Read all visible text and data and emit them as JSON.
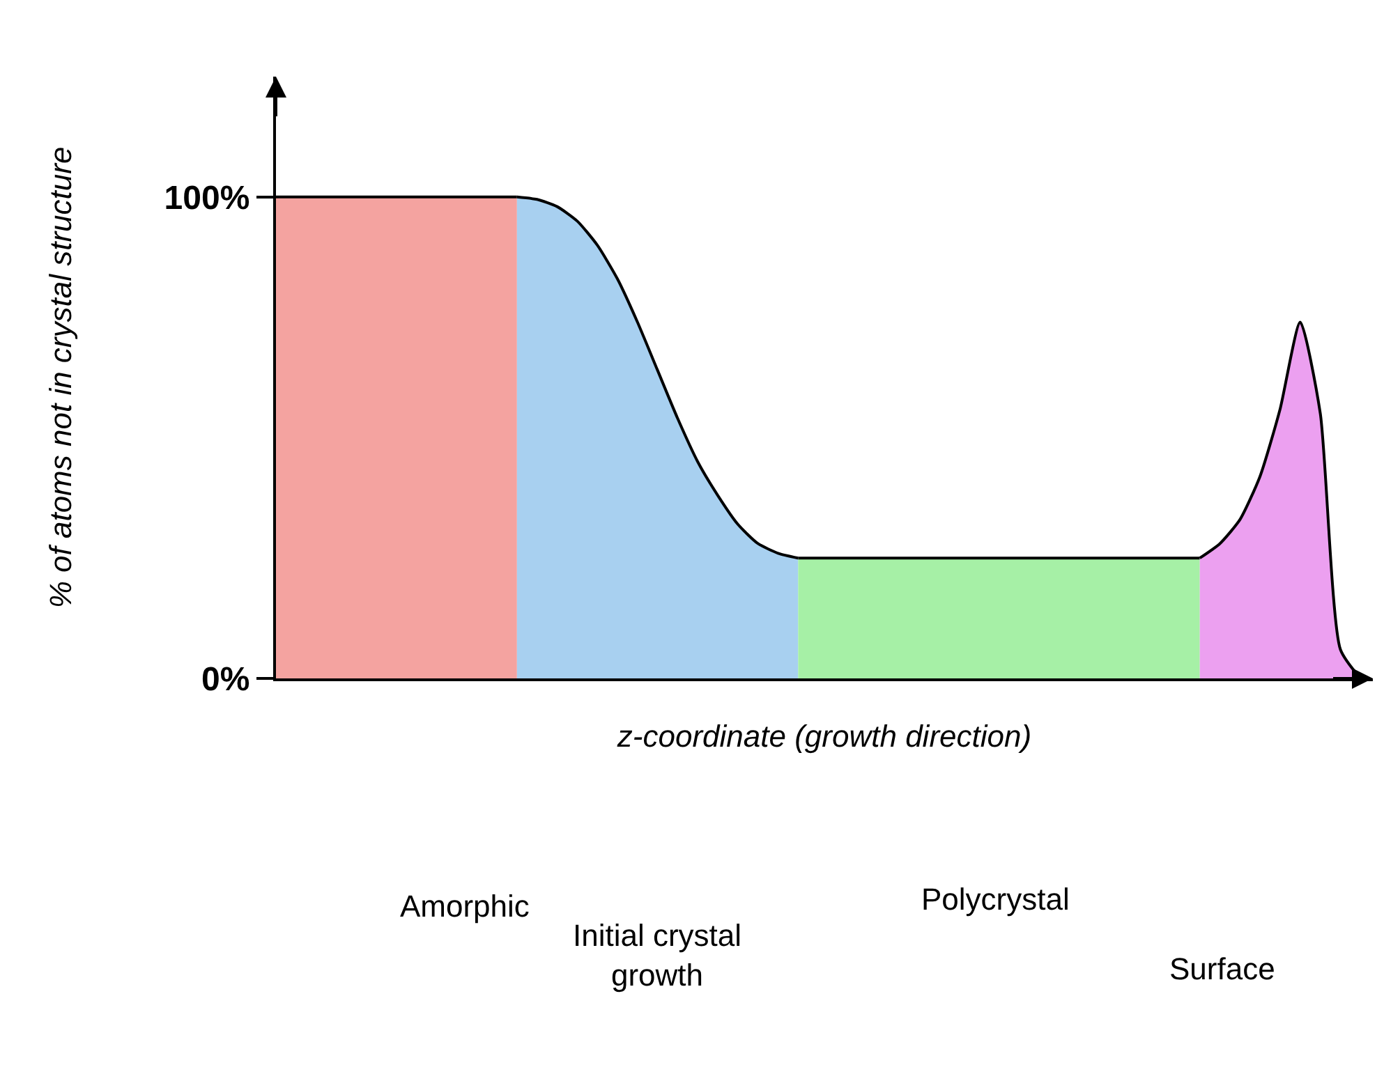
{
  "chart_data": {
    "type": "area",
    "relative": false,
    "xlabel": "z-coordinate (growth direction)",
    "ylabel": "% of atoms not in crystal structure",
    "categories": [
      null,
      null,
      null,
      null,
      null,
      null,
      null,
      null,
      null,
      null,
      null,
      null,
      null,
      null,
      null,
      null,
      null,
      null,
      null,
      null,
      null,
      null,
      null,
      null,
      null,
      null,
      null,
      null,
      null,
      null,
      null,
      null,
      null,
      null,
      null,
      null,
      null,
      null,
      null,
      null,
      null,
      null,
      null,
      null,
      null,
      null,
      null,
      null,
      null,
      null,
      null,
      null,
      null,
      null,
      null
    ],
    "ylim": [
      0,
      125
    ],
    "yticks": [
      {
        "value": 0,
        "label": "0%"
      },
      {
        "value": 100,
        "label": "100%"
      }
    ],
    "series": [
      {
        "color": "#f4a3a0",
        "values": [
          100,
          100,
          100,
          100,
          100,
          100,
          100,
          100,
          100,
          100,
          100,
          100,
          100,
          null,
          null,
          null,
          null,
          null,
          null,
          null,
          null,
          null,
          null,
          null,
          null,
          null,
          null,
          null,
          null,
          null,
          null,
          null,
          null,
          null,
          null,
          null,
          null,
          null,
          null,
          null,
          null,
          null,
          null,
          null,
          null,
          null,
          null,
          null,
          null,
          null,
          null,
          null,
          null,
          null,
          null
        ]
      },
      {
        "color": "#a8d0f0",
        "values": [
          null,
          null,
          null,
          null,
          null,
          null,
          null,
          null,
          null,
          null,
          null,
          null,
          100,
          99.5,
          98,
          95,
          90,
          83,
          74,
          64,
          54,
          45,
          38,
          32,
          28,
          26,
          25,
          null,
          null,
          null,
          null,
          null,
          null,
          null,
          null,
          null,
          null,
          null,
          null,
          null,
          null,
          null,
          null,
          null,
          null,
          null,
          null,
          null,
          null,
          null,
          null,
          null,
          null,
          null,
          null
        ]
      },
      {
        "color": "#a6f0a6",
        "values": [
          null,
          null,
          null,
          null,
          null,
          null,
          null,
          null,
          null,
          null,
          null,
          null,
          null,
          null,
          null,
          null,
          null,
          null,
          null,
          null,
          null,
          null,
          null,
          null,
          null,
          null,
          25,
          25,
          25,
          25,
          25,
          25,
          25,
          25,
          25,
          25,
          25,
          25,
          25,
          25,
          25,
          25,
          25,
          25,
          25,
          25,
          25,
          null,
          null,
          null,
          null,
          null,
          null,
          null,
          null
        ]
      },
      {
        "color": "#eca0f0",
        "values": [
          null,
          null,
          null,
          null,
          null,
          null,
          null,
          null,
          null,
          null,
          null,
          null,
          null,
          null,
          null,
          null,
          null,
          null,
          null,
          null,
          null,
          null,
          null,
          null,
          null,
          null,
          null,
          null,
          null,
          null,
          null,
          null,
          null,
          null,
          null,
          null,
          null,
          null,
          null,
          null,
          null,
          null,
          null,
          null,
          null,
          null,
          25,
          28,
          33,
          42,
          56,
          74,
          55,
          6,
          0
        ]
      }
    ],
    "annotations": [
      "Amorphic",
      "Initial crystal\ngrowth",
      "Polycrystal",
      "Surface"
    ]
  }
}
